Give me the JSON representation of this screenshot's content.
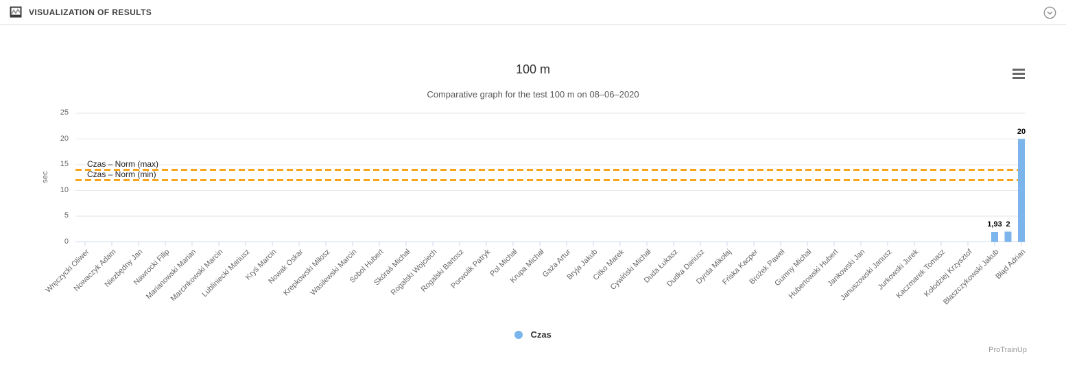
{
  "header": {
    "title": "VISUALIZATION OF RESULTS",
    "icon": "area-chart-icon",
    "collapse_icon": "chevron-down-circle-icon"
  },
  "chart": {
    "export_menu_icon": "hamburger-menu-icon",
    "credits": "ProTrainUp"
  },
  "chart_data": {
    "type": "bar",
    "title": "100 m",
    "subtitle": "Comparative graph for the test 100 m on 08–06–2020",
    "xlabel": "",
    "ylabel": "sec",
    "ylim": [
      0,
      25
    ],
    "y_ticks": [
      0,
      5,
      10,
      15,
      20,
      25
    ],
    "grid": true,
    "legend_position": "bottom-center",
    "legend": [
      {
        "label": "Czas",
        "color": "#7cb5ec"
      }
    ],
    "categories": [
      "Wręczycki Oliwer",
      "Nowaczyk Adam",
      "Niezbędny Jan",
      "Nawrocki Filip",
      "Marianowski Marian",
      "Marcinkowski Marcin",
      "Lubliniecki Mariusz",
      "Kryś Marcin",
      "Nowak Oskar",
      "Krepkowski Miłosz",
      "Wasilewski Marcin",
      "Sobol Hubert",
      "Skóraś Michał",
      "Rogalski Wojciech",
      "Rogalski Bartosz",
      "Porwolik Patryk",
      "Pol Michał",
      "Krupa Michał",
      "Gaża Artur",
      "Bryja Jakub",
      "Citko Marek",
      "Cywiński Michał",
      "Duda Łukasz",
      "Dudka Dariusz",
      "Dyrda Mikołaj",
      "Friska Kacper",
      "Brożek Paweł",
      "Gumny Michał",
      "Hubertowski Hubert",
      "Jankowski Jan",
      "Januszowski Janusz",
      "Jurkowski Jurek",
      "Kaczmarek Tomasz",
      "Kołodziej Krzysztof",
      "Błaszczykowski Jakub",
      "Błąd Adrian"
    ],
    "series": [
      {
        "name": "Czas",
        "color": "#7cb5ec",
        "points": [
          {
            "category_index": 34,
            "category": "Błaszczykowski Jakub",
            "value": 1.93,
            "label": "1,93"
          },
          {
            "category_index": 34.5,
            "category": "",
            "value": 2,
            "label": "2"
          },
          {
            "category_index": 35,
            "category": "Błąd Adrian",
            "value": 20,
            "label": "20"
          }
        ]
      }
    ],
    "norm_lines": [
      {
        "label": "Czas – Norm (max)",
        "value": 14,
        "color": "#f9a51b",
        "style": "dashed"
      },
      {
        "label": "Czas – Norm (min)",
        "value": 12,
        "color": "#f9a51b",
        "style": "dashed"
      }
    ]
  },
  "colors": {
    "bar": "#7cb5ec",
    "norm_line": "#f9a51b",
    "gridline": "#e6e6e6",
    "axis_line": "#ccd6eb",
    "text_muted": "#666666",
    "text_dark": "#333333"
  }
}
